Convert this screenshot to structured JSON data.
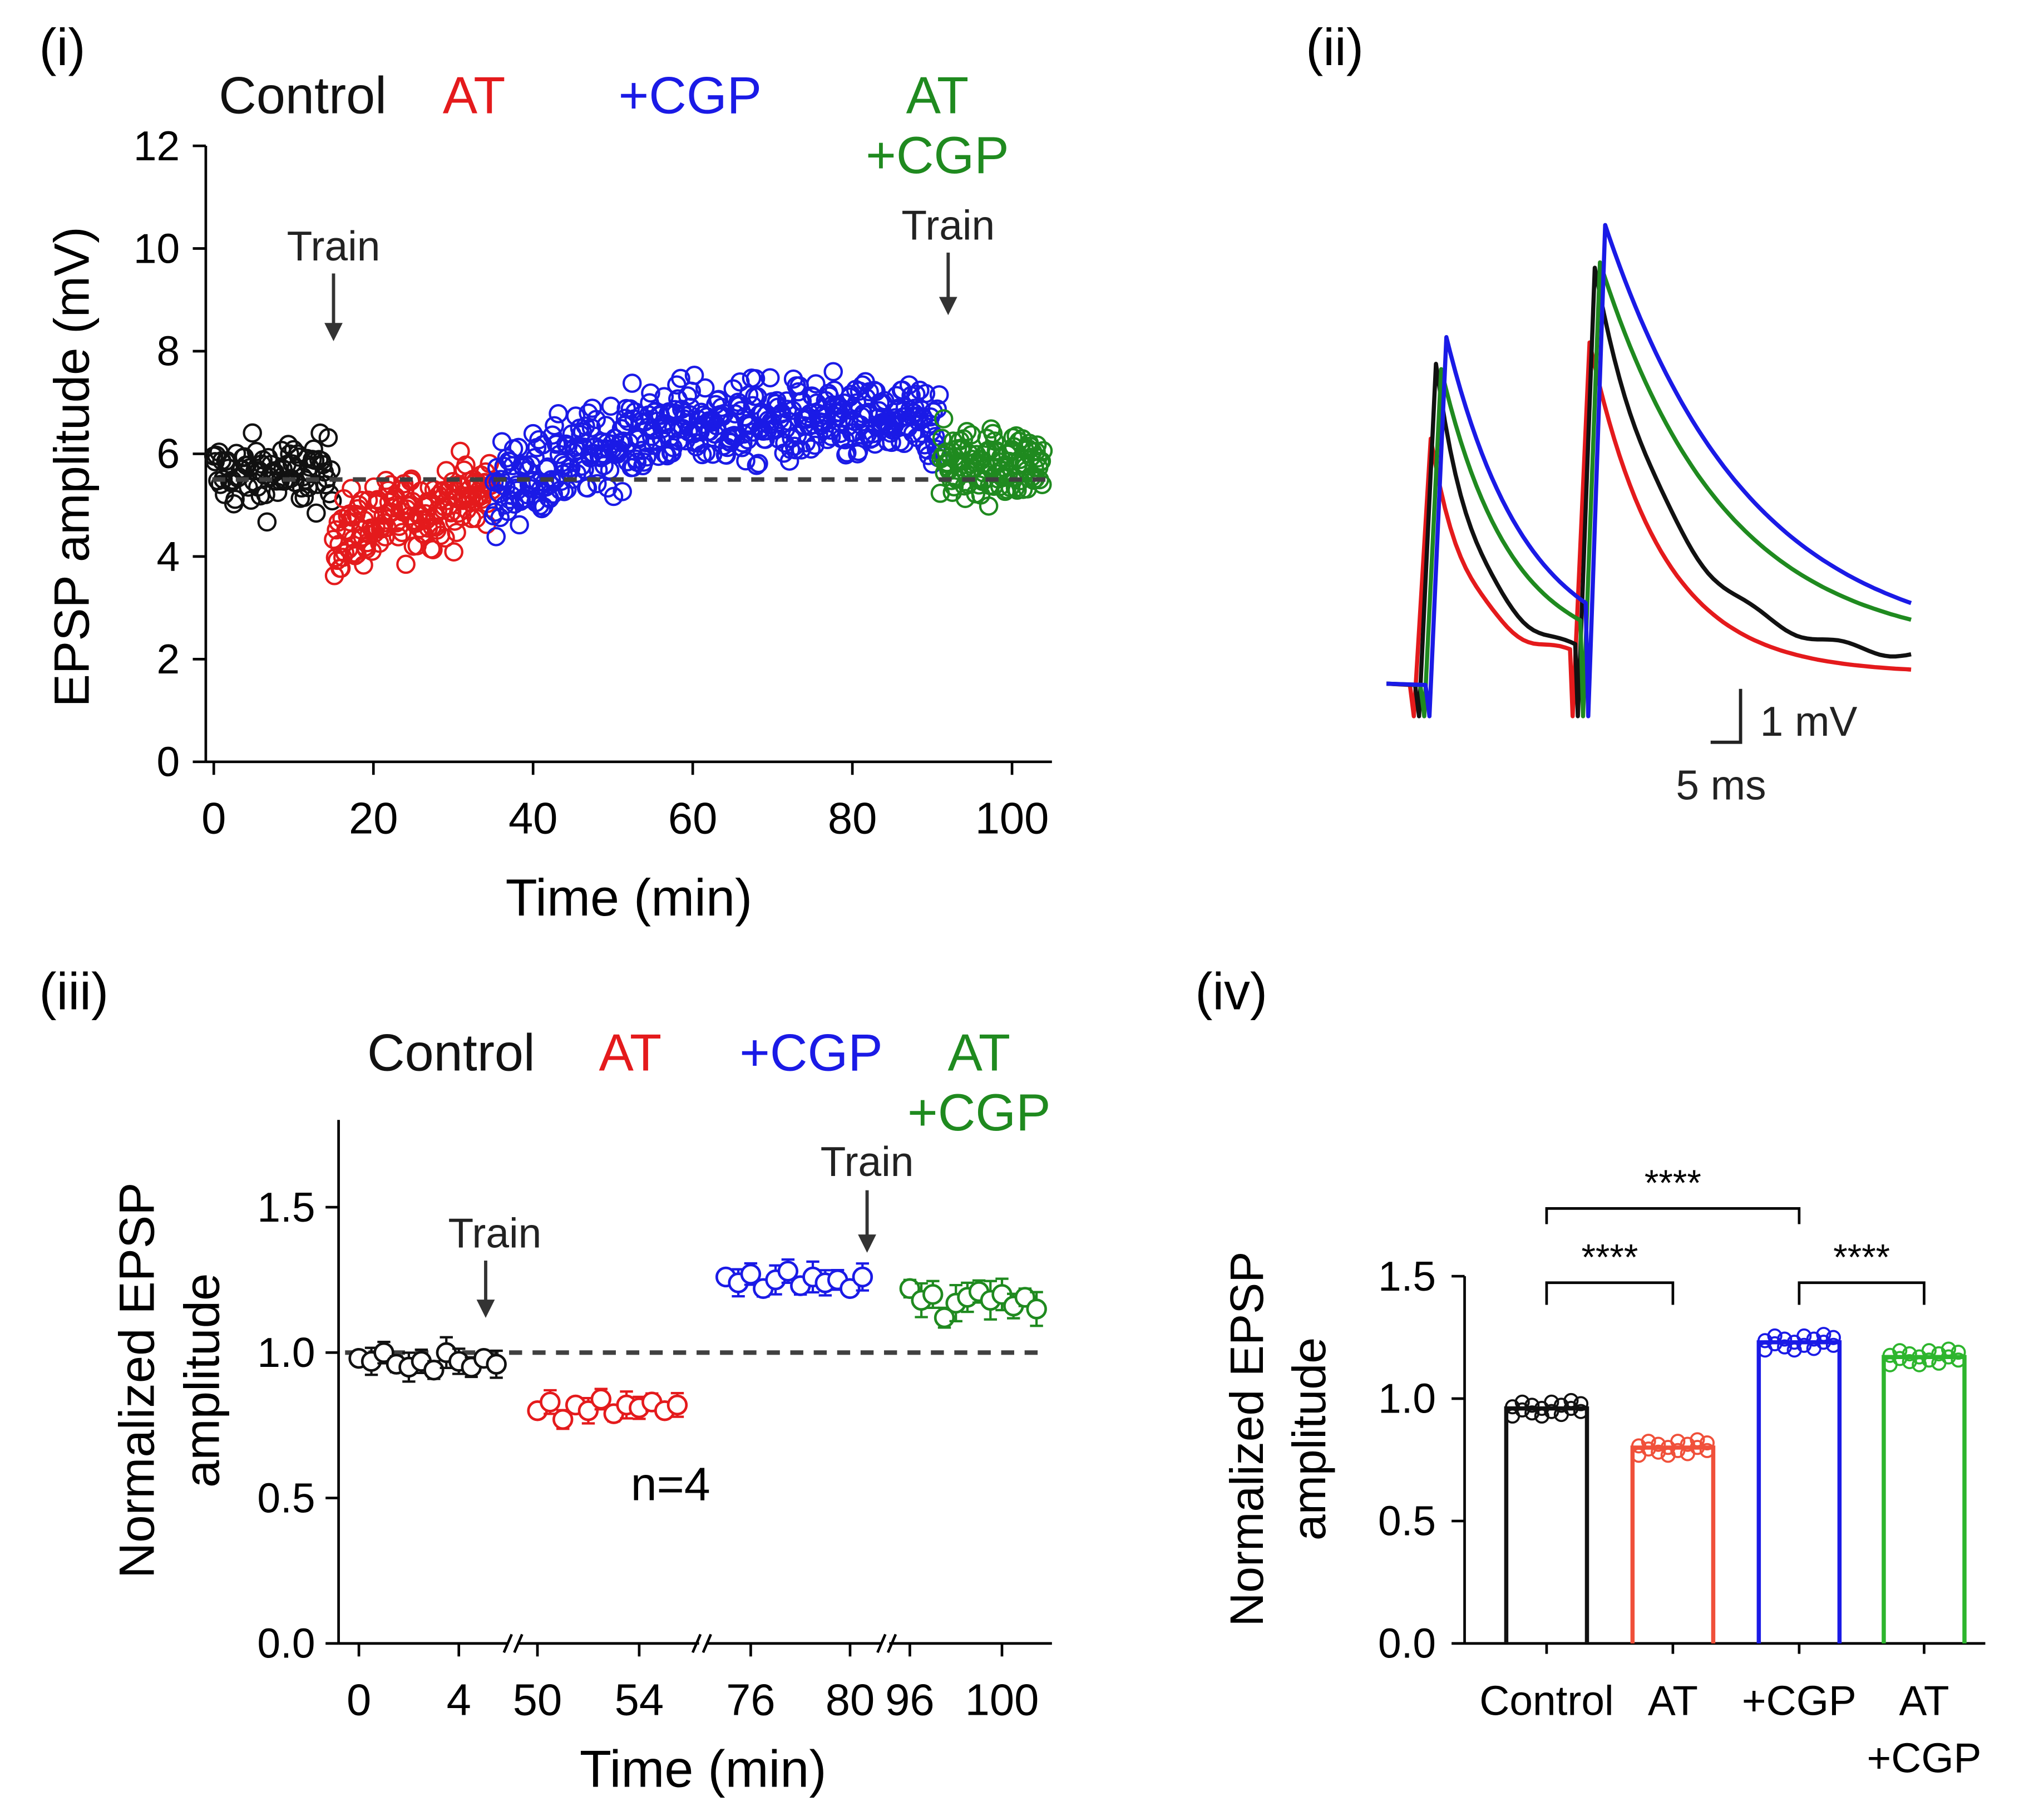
{
  "colors": {
    "control": "#111111",
    "at": "#e41a1c",
    "cgp": "#1a1ae6",
    "atcgp": "#1f8a1f",
    "at_bar": "#f0503a",
    "atcgp_bar": "#2db52d",
    "dashed": "#404040",
    "arrow": "#333333"
  },
  "chart_data": [
    {
      "panel": "(i)",
      "type": "scatter",
      "xlabel": "Time (min)",
      "ylabel": "EPSP amplitude (mV)",
      "xlim": [
        -1,
        105
      ],
      "ylim": [
        0,
        12
      ],
      "xticks": [
        "0",
        "20",
        "40",
        "60",
        "80",
        "100"
      ],
      "yticks": [
        "0",
        "2",
        "4",
        "6",
        "8",
        "10",
        "12"
      ],
      "baseline": 5.5,
      "legend": [
        "Control",
        "AT",
        "+CGP",
        "AT",
        "+CGP"
      ],
      "annotations": [
        "Train",
        "Train"
      ],
      "train_times": [
        15,
        92
      ],
      "series": [
        {
          "name": "Control",
          "color_key": "control",
          "x_range": [
            0,
            15
          ],
          "mean": 5.6,
          "spread": 0.65,
          "n": 90
        },
        {
          "name": "AT",
          "color_key": "at",
          "x_range": [
            15,
            35
          ],
          "mean": 4.9,
          "spread": 0.7,
          "n": 170
        },
        {
          "name": "+CGP",
          "color_key": "cgp",
          "x_range": [
            35,
            91
          ],
          "mean": 6.4,
          "spread": 0.75,
          "n": 460
        },
        {
          "name": "AT +CGP",
          "color_key": "atcgp",
          "x_range": [
            91,
            104
          ],
          "mean": 5.8,
          "spread": 0.65,
          "n": 120
        }
      ]
    },
    {
      "panel": "(ii)",
      "type": "line",
      "scale_bar": {
        "vertical": "1 mV",
        "horizontal": "5 ms"
      },
      "series": [
        {
          "name": "Control",
          "color_key": "control",
          "peak1": 6.6,
          "peak2": 8.4
        },
        {
          "name": "AT",
          "color_key": "at",
          "peak1": 5.2,
          "peak2": 7.0
        },
        {
          "name": "+CGP",
          "color_key": "cgp",
          "peak1": 7.1,
          "peak2": 9.2
        },
        {
          "name": "AT +CGP",
          "color_key": "atcgp",
          "peak1": 6.5,
          "peak2": 8.5
        }
      ]
    },
    {
      "panel": "(iii)",
      "type": "scatter",
      "xlabel": "Time (min)",
      "ylabel": [
        "Normalized EPSP",
        "amplitude"
      ],
      "ylim": [
        0,
        1.8
      ],
      "yticks": [
        "0.0",
        "0.5",
        "1.0",
        "1.5"
      ],
      "xticks": [
        "0",
        "4",
        "50",
        "54",
        "76",
        "80",
        "96",
        "100"
      ],
      "baseline": 1.0,
      "legend": [
        "Control",
        "AT",
        "+CGP",
        "AT",
        "+CGP"
      ],
      "annotations": [
        "Train",
        "Train",
        "n=4"
      ],
      "series": [
        {
          "name": "Control",
          "color_key": "control",
          "x": [
            0,
            0.5,
            1,
            1.5,
            2,
            2.5,
            3,
            3.5,
            4,
            4.5,
            5,
            5.5
          ],
          "values": [
            0.98,
            0.97,
            1.0,
            0.96,
            0.95,
            0.97,
            0.94,
            1.0,
            0.97,
            0.95,
            0.98,
            0.96
          ],
          "err": 0.04
        },
        {
          "name": "AT",
          "color_key": "at",
          "x": [
            50,
            50.5,
            51,
            51.5,
            52,
            52.5,
            53,
            53.5,
            54,
            54.5,
            55,
            55.5
          ],
          "values": [
            0.8,
            0.83,
            0.77,
            0.82,
            0.8,
            0.84,
            0.79,
            0.82,
            0.81,
            0.83,
            0.8,
            0.82
          ],
          "err": 0.035
        },
        {
          "name": "+CGP",
          "color_key": "cgp",
          "x": [
            75,
            75.5,
            76,
            76.5,
            77,
            77.5,
            78,
            78.5,
            79,
            79.5,
            80,
            80.5
          ],
          "values": [
            1.26,
            1.24,
            1.27,
            1.22,
            1.25,
            1.28,
            1.23,
            1.26,
            1.24,
            1.25,
            1.22,
            1.26
          ],
          "err": 0.04
        },
        {
          "name": "AT +CGP",
          "color_key": "atcgp",
          "x": [
            96,
            96.5,
            97,
            97.5,
            98,
            98.5,
            99,
            99.5,
            100,
            100.5,
            101,
            101.5
          ],
          "values": [
            1.22,
            1.18,
            1.2,
            1.12,
            1.17,
            1.19,
            1.21,
            1.18,
            1.2,
            1.16,
            1.19,
            1.15
          ],
          "err": 0.05
        }
      ]
    },
    {
      "panel": "(iv)",
      "type": "bar",
      "ylabel": [
        "Normalized EPSP",
        "amplitude"
      ],
      "ylim": [
        0,
        1.5
      ],
      "yticks": [
        "0.0",
        "0.5",
        "1.0",
        "1.5"
      ],
      "categories": [
        "Control",
        "AT",
        "+CGP",
        "AT +CGP"
      ],
      "category_lines": [
        [
          "Control"
        ],
        [
          "AT"
        ],
        [
          "+CGP"
        ],
        [
          "AT",
          "+CGP"
        ]
      ],
      "values": [
        0.96,
        0.8,
        1.23,
        1.17
      ],
      "color_keys": [
        "control",
        "at_bar",
        "cgp",
        "atcgp_bar"
      ],
      "significance": [
        {
          "from": 0,
          "to": 2,
          "label": "****"
        },
        {
          "from": 0,
          "to": 1,
          "label": "****"
        },
        {
          "from": 2,
          "to": 3,
          "label": "****"
        }
      ]
    }
  ]
}
